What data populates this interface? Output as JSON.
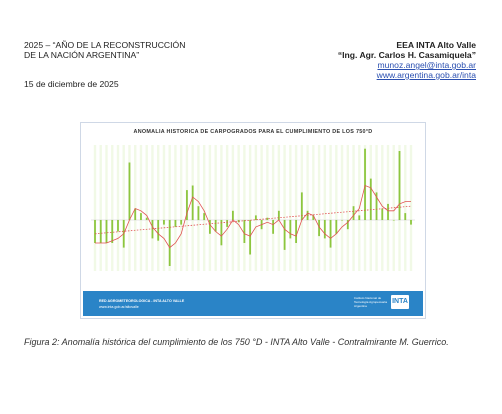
{
  "header": {
    "left_line1": "2025 – “AÑO DE LA RECONSTRUCCIÓN",
    "left_line2": "DE LA NACIÓN ARGENTINA”",
    "right_org": "EEA INTA Alto Valle",
    "right_person": "“Ing. Agr. Carlos H. Casamiquela”",
    "email": "munoz.angel@inta.gob.ar",
    "website": "www.argentina.gob.ar/inta"
  },
  "date": "15 de diciembre de 2025",
  "figure": {
    "chart_title": "ANOMALIA HISTORICA DE CARPOGRADOS PARA EL CUMPLIMIENTO DE LOS 750°D",
    "footer": {
      "network": "RED AGROMETEOROLOGICA - INTA ALTO VALLE",
      "web": "www.inta.gob.ar/altovalle",
      "institute_line1": "Instituto Nacional de",
      "institute_line2": "Tecnología Agropecuaria",
      "institute_line3": "Argentina",
      "logo_text": "INTA"
    },
    "bar_color": "#8dc63f",
    "line_color": "#e05252",
    "band_color": "#d7edb8"
  },
  "chart_data": {
    "type": "bar",
    "values": [
      -10,
      -10,
      -10,
      -10,
      -5,
      -12,
      25,
      5,
      3,
      1,
      -8,
      -9,
      -2,
      -20,
      -3,
      -2,
      13,
      15,
      6,
      3,
      -6,
      -5,
      -11,
      -3,
      4,
      -1,
      -10,
      -15,
      2,
      -4,
      1,
      -6,
      4,
      -13,
      -8,
      -10,
      12,
      4,
      2,
      -7,
      -8,
      -12,
      -6,
      0,
      -4,
      6,
      2,
      31,
      18,
      12,
      5,
      7,
      0,
      30,
      3,
      -2
    ],
    "moving_average": [
      -10,
      -10,
      -10,
      -9,
      -8,
      -6,
      0,
      5,
      4,
      2,
      -3,
      -6,
      -8,
      -12,
      -10,
      -6,
      3,
      10,
      8,
      4,
      -2,
      -5,
      -7,
      -4,
      0,
      -2,
      -6,
      -7,
      -3,
      -2,
      -1,
      -2,
      0,
      -4,
      -6,
      -7,
      0,
      3,
      2,
      -3,
      -6,
      -8,
      -6,
      -3,
      -1,
      2,
      5,
      15,
      14,
      10,
      6,
      4,
      4,
      7,
      8,
      8
    ],
    "trend": [
      -6,
      6
    ]
  }
}
